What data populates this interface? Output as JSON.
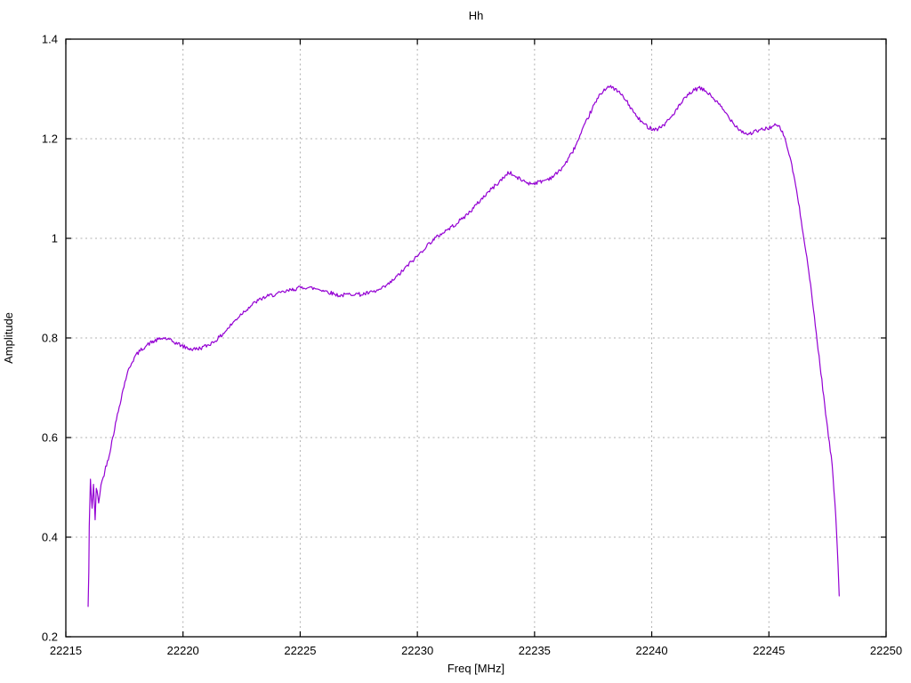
{
  "page": {
    "background": "#ffffff"
  },
  "chart_data": {
    "type": "line",
    "title": "Hh",
    "xlabel": "Freq [MHz]",
    "ylabel": "Amplitude",
    "xlim": [
      22215,
      22250
    ],
    "ylim": [
      0.2,
      1.4
    ],
    "xticks": [
      {
        "v": 22215,
        "label": "22215"
      },
      {
        "v": 22220,
        "label": "22220"
      },
      {
        "v": 22225,
        "label": "22225"
      },
      {
        "v": 22230,
        "label": "22230"
      },
      {
        "v": 22235,
        "label": "22235"
      },
      {
        "v": 22240,
        "label": "22240"
      },
      {
        "v": 22245,
        "label": "22245"
      },
      {
        "v": 22250,
        "label": "22250"
      }
    ],
    "yticks": [
      {
        "v": 0.2,
        "label": "0.2"
      },
      {
        "v": 0.4,
        "label": "0.4"
      },
      {
        "v": 0.6,
        "label": "0.6"
      },
      {
        "v": 0.8,
        "label": "0.8"
      },
      {
        "v": 1.0,
        "label": "1"
      },
      {
        "v": 1.2,
        "label": "1.2"
      },
      {
        "v": 1.4,
        "label": "1.4"
      }
    ],
    "grid": "dashed-gray-at-major-ticks",
    "legend": "none",
    "border_ticks": "mirrored-inward",
    "series": [
      {
        "name": "Hh",
        "color": "#9400d3",
        "noise_amplitude": 0.004,
        "points": [
          [
            22215.95,
            0.26
          ],
          [
            22215.98,
            0.33
          ],
          [
            22216.0,
            0.42
          ],
          [
            22216.05,
            0.515
          ],
          [
            22216.12,
            0.458
          ],
          [
            22216.18,
            0.505
          ],
          [
            22216.25,
            0.435
          ],
          [
            22216.3,
            0.5
          ],
          [
            22216.4,
            0.47
          ],
          [
            22216.5,
            0.505
          ],
          [
            22216.6,
            0.52
          ],
          [
            22216.7,
            0.54
          ],
          [
            22216.85,
            0.565
          ],
          [
            22217.0,
            0.6
          ],
          [
            22217.2,
            0.645
          ],
          [
            22217.4,
            0.688
          ],
          [
            22217.6,
            0.726
          ],
          [
            22217.8,
            0.75
          ],
          [
            22218.0,
            0.766
          ],
          [
            22218.3,
            0.78
          ],
          [
            22218.6,
            0.79
          ],
          [
            22218.9,
            0.796
          ],
          [
            22219.2,
            0.8
          ],
          [
            22219.5,
            0.794
          ],
          [
            22219.8,
            0.788
          ],
          [
            22220.1,
            0.781
          ],
          [
            22220.4,
            0.777
          ],
          [
            22220.7,
            0.779
          ],
          [
            22221.0,
            0.784
          ],
          [
            22221.3,
            0.792
          ],
          [
            22221.6,
            0.803
          ],
          [
            22221.9,
            0.818
          ],
          [
            22222.2,
            0.834
          ],
          [
            22222.5,
            0.849
          ],
          [
            22222.8,
            0.861
          ],
          [
            22223.1,
            0.872
          ],
          [
            22223.4,
            0.88
          ],
          [
            22223.7,
            0.885
          ],
          [
            22224.0,
            0.888
          ],
          [
            22224.3,
            0.892
          ],
          [
            22224.6,
            0.896
          ],
          [
            22224.9,
            0.9
          ],
          [
            22225.2,
            0.902
          ],
          [
            22225.5,
            0.9
          ],
          [
            22225.8,
            0.898
          ],
          [
            22226.1,
            0.894
          ],
          [
            22226.4,
            0.889
          ],
          [
            22226.7,
            0.885
          ],
          [
            22227.0,
            0.887
          ],
          [
            22227.3,
            0.889
          ],
          [
            22227.6,
            0.887
          ],
          [
            22227.9,
            0.89
          ],
          [
            22228.2,
            0.893
          ],
          [
            22228.5,
            0.899
          ],
          [
            22228.8,
            0.909
          ],
          [
            22229.1,
            0.922
          ],
          [
            22229.4,
            0.936
          ],
          [
            22229.7,
            0.951
          ],
          [
            22230.0,
            0.964
          ],
          [
            22230.3,
            0.98
          ],
          [
            22230.6,
            0.994
          ],
          [
            22230.9,
            1.005
          ],
          [
            22231.2,
            1.015
          ],
          [
            22231.5,
            1.024
          ],
          [
            22231.8,
            1.035
          ],
          [
            22232.1,
            1.047
          ],
          [
            22232.4,
            1.061
          ],
          [
            22232.7,
            1.077
          ],
          [
            22233.0,
            1.092
          ],
          [
            22233.3,
            1.105
          ],
          [
            22233.6,
            1.118
          ],
          [
            22233.9,
            1.133
          ],
          [
            22234.2,
            1.123
          ],
          [
            22234.5,
            1.116
          ],
          [
            22234.8,
            1.11
          ],
          [
            22235.1,
            1.112
          ],
          [
            22235.4,
            1.116
          ],
          [
            22235.7,
            1.122
          ],
          [
            22236.0,
            1.132
          ],
          [
            22236.3,
            1.149
          ],
          [
            22236.6,
            1.172
          ],
          [
            22236.9,
            1.2
          ],
          [
            22237.2,
            1.234
          ],
          [
            22237.5,
            1.264
          ],
          [
            22237.8,
            1.289
          ],
          [
            22238.1,
            1.305
          ],
          [
            22238.4,
            1.301
          ],
          [
            22238.7,
            1.289
          ],
          [
            22239.0,
            1.27
          ],
          [
            22239.3,
            1.248
          ],
          [
            22239.6,
            1.232
          ],
          [
            22239.9,
            1.222
          ],
          [
            22240.2,
            1.219
          ],
          [
            22240.5,
            1.227
          ],
          [
            22240.8,
            1.242
          ],
          [
            22241.1,
            1.261
          ],
          [
            22241.4,
            1.28
          ],
          [
            22241.7,
            1.294
          ],
          [
            22242.0,
            1.302
          ],
          [
            22242.3,
            1.296
          ],
          [
            22242.6,
            1.283
          ],
          [
            22242.9,
            1.267
          ],
          [
            22243.2,
            1.249
          ],
          [
            22243.5,
            1.231
          ],
          [
            22243.8,
            1.216
          ],
          [
            22244.1,
            1.209
          ],
          [
            22244.4,
            1.214
          ],
          [
            22244.7,
            1.218
          ],
          [
            22245.0,
            1.222
          ],
          [
            22245.3,
            1.227
          ],
          [
            22245.5,
            1.221
          ],
          [
            22245.7,
            1.198
          ],
          [
            22245.9,
            1.162
          ],
          [
            22246.1,
            1.118
          ],
          [
            22246.3,
            1.06
          ],
          [
            22246.5,
            1.0
          ],
          [
            22246.7,
            0.934
          ],
          [
            22246.9,
            0.858
          ],
          [
            22247.1,
            0.778
          ],
          [
            22247.3,
            0.698
          ],
          [
            22247.5,
            0.618
          ],
          [
            22247.7,
            0.545
          ],
          [
            22247.85,
            0.448
          ],
          [
            22247.95,
            0.345
          ],
          [
            22248.0,
            0.282
          ]
        ]
      }
    ]
  }
}
